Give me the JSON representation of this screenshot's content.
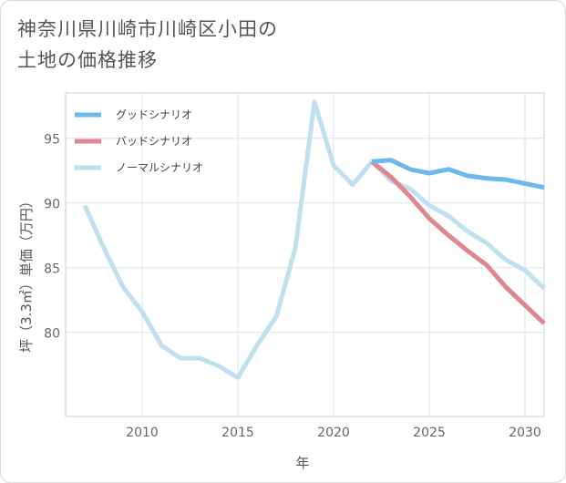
{
  "title_lines": [
    "神奈川県川崎市川崎区小田の",
    "土地の価格推移"
  ],
  "chart_data": {
    "type": "line",
    "xlabel": "年",
    "ylabel": "坪（3.3㎡）単価（万円）",
    "xlim": [
      2006,
      2031
    ],
    "ylim": [
      73.5,
      98.5
    ],
    "x_ticks": [
      2010,
      2015,
      2020,
      2025,
      2030
    ],
    "y_ticks": [
      80,
      85,
      90,
      95
    ],
    "grid": true,
    "legend_position": "top-left",
    "series": [
      {
        "name": "グッドシナリオ",
        "color": "#6cb8ea",
        "x": [
          2022,
          2023,
          2024,
          2025,
          2026,
          2027,
          2028,
          2029,
          2030,
          2031
        ],
        "y": [
          93.2,
          93.3,
          92.6,
          92.3,
          92.6,
          92.1,
          91.9,
          91.8,
          91.5,
          91.2
        ]
      },
      {
        "name": "バッドシナリオ",
        "color": "#e0868e",
        "x": [
          2022,
          2023,
          2024,
          2025,
          2026,
          2027,
          2028,
          2029,
          2030,
          2031
        ],
        "y": [
          93.2,
          92.0,
          90.5,
          88.8,
          87.5,
          86.3,
          85.2,
          83.5,
          82.1,
          80.7
        ]
      },
      {
        "name": "ノーマルシナリオ",
        "color": "#bfe0ee",
        "x": [
          2007,
          2008,
          2009,
          2010,
          2011,
          2012,
          2013,
          2014,
          2015,
          2016,
          2017,
          2018,
          2019,
          2020,
          2021,
          2022,
          2023,
          2024,
          2025,
          2026,
          2027,
          2028,
          2029,
          2030,
          2031
        ],
        "y": [
          89.8,
          86.5,
          83.5,
          81.6,
          79.0,
          78.0,
          78.0,
          77.4,
          76.5,
          79.0,
          81.2,
          86.5,
          97.8,
          92.9,
          91.4,
          93.2,
          91.7,
          91.1,
          89.8,
          89.0,
          87.8,
          86.9,
          85.6,
          84.8,
          83.4
        ]
      }
    ]
  }
}
